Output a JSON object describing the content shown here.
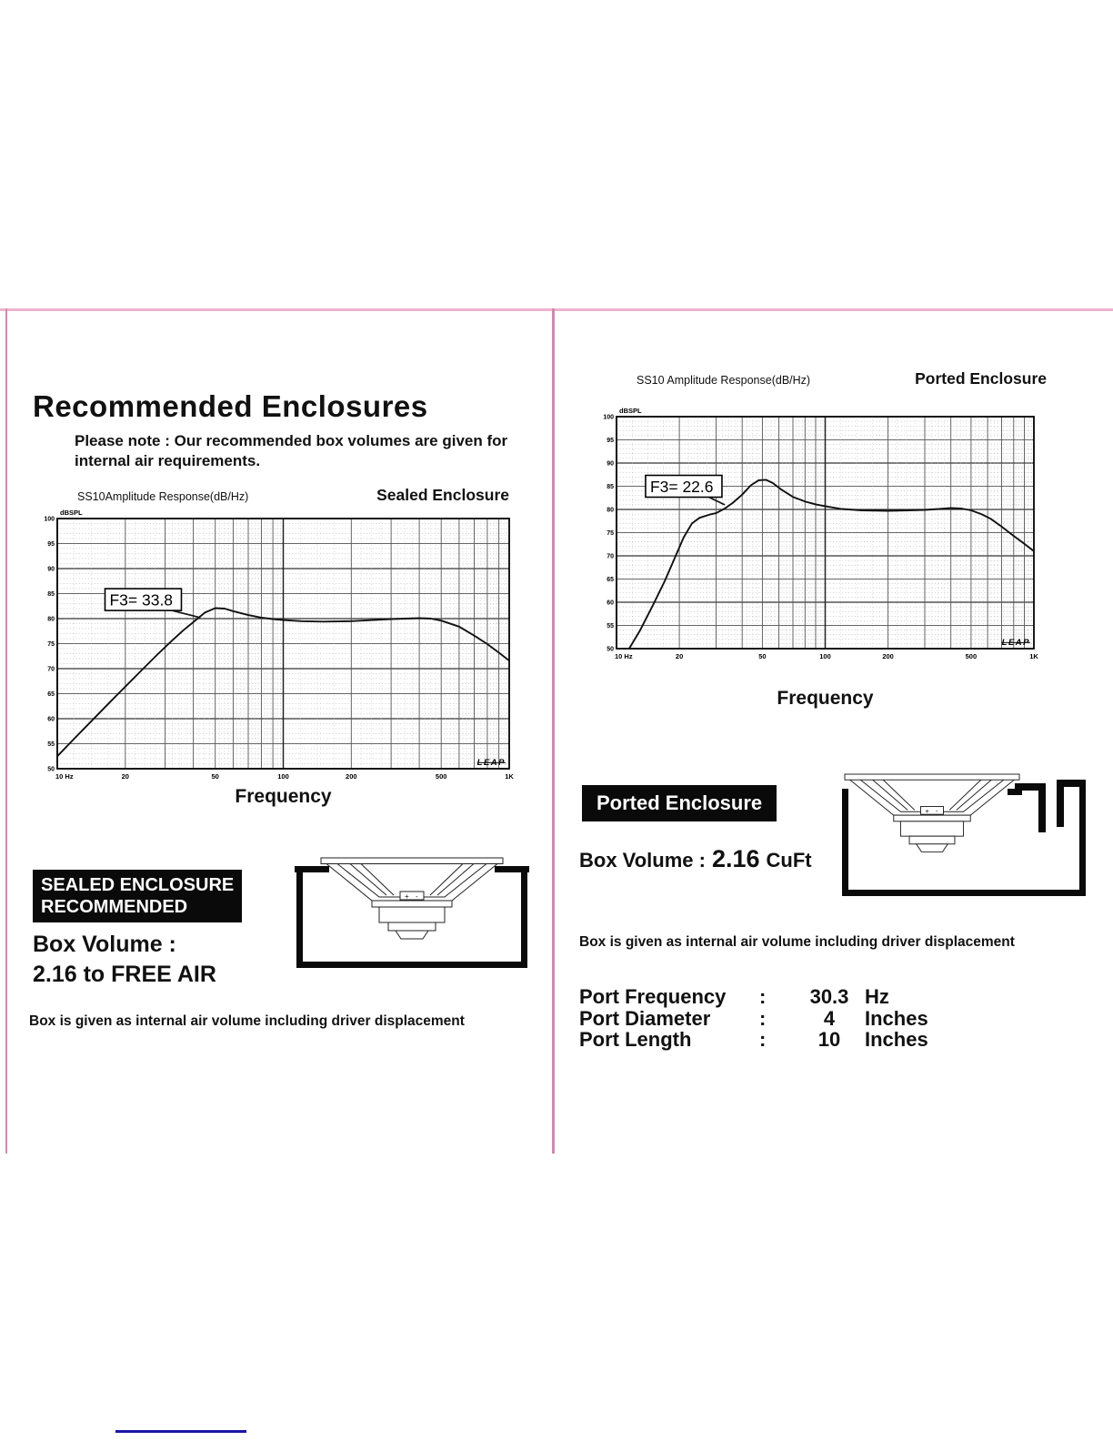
{
  "left": {
    "heading": "Recommended Enclosures",
    "note_line1": "Please note : Our recommended box volumes are given for",
    "note_line2": "internal air requirements.",
    "badge_line1": "SEALED ENCLOSURE",
    "badge_line2": "RECOMMENDED",
    "box_volume_label": "Box Volume :",
    "box_volume_value": "2.16 to FREE AIR",
    "footnote": "Box is given as internal air volume including driver displacement"
  },
  "right": {
    "badge": "Ported Enclosure",
    "box_volume_label": "Box Volume :",
    "box_volume_value": "2.16",
    "box_volume_unit": "CuFt",
    "footnote": "Box is given as internal air volume including driver displacement",
    "port_specs": {
      "rows": [
        {
          "label": "Port Frequency",
          "colon": ":",
          "value": "30.3",
          "unit": "Hz"
        },
        {
          "label": "Port Diameter",
          "colon": ":",
          "value": "4",
          "unit": "Inches"
        },
        {
          "label": "Port Length",
          "colon": ":",
          "value": "10",
          "unit": "Inches"
        }
      ]
    }
  },
  "drawings": {
    "terminal_plus": "+",
    "terminal_minus": "-"
  },
  "colors": {
    "border_pink": "#cd8ab0",
    "border_pink_top": "#edb3ce",
    "badge_bg": "#0a0a0a",
    "link_blue": "#1a16a8",
    "curve_black": "#111111"
  },
  "chart_data": [
    {
      "type": "line",
      "title": "SS10Amplitude Response(dB/Hz)",
      "corner_label": "Sealed Enclosure",
      "ylabel": "dBSPL",
      "xlabel": "Frequency",
      "logo": "LEAP",
      "xlim": [
        10,
        1000
      ],
      "ylim": [
        50,
        100
      ],
      "grid": "log-x, 5dB major / 1dB minor",
      "xticks": [
        {
          "v": 10,
          "label": "10 Hz"
        },
        {
          "v": 20,
          "label": "20"
        },
        {
          "v": 50,
          "label": "50"
        },
        {
          "v": 100,
          "label": "100"
        },
        {
          "v": 200,
          "label": "200"
        },
        {
          "v": 500,
          "label": "500"
        },
        {
          "v": 1000,
          "label": "1K"
        }
      ],
      "annotation": {
        "text": "F3= 33.8",
        "box_f": 24,
        "box_db": 83.8,
        "target_f": 43,
        "target_db": 80.2
      },
      "points": [
        [
          10,
          52.5
        ],
        [
          12,
          56.2
        ],
        [
          14,
          59.3
        ],
        [
          17,
          63.2
        ],
        [
          20,
          66.4
        ],
        [
          24,
          70
        ],
        [
          28,
          73
        ],
        [
          32,
          75.5
        ],
        [
          36,
          77.6
        ],
        [
          40,
          79.3
        ],
        [
          45,
          81.2
        ],
        [
          50,
          82.1
        ],
        [
          55,
          82
        ],
        [
          60,
          81.5
        ],
        [
          70,
          80.7
        ],
        [
          80,
          80.2
        ],
        [
          90,
          79.9
        ],
        [
          100,
          79.7
        ],
        [
          120,
          79.5
        ],
        [
          150,
          79.4
        ],
        [
          200,
          79.5
        ],
        [
          250,
          79.7
        ],
        [
          300,
          79.9
        ],
        [
          350,
          80
        ],
        [
          400,
          80.1
        ],
        [
          450,
          80
        ],
        [
          500,
          79.6
        ],
        [
          600,
          78.4
        ],
        [
          700,
          76.6
        ],
        [
          800,
          74.9
        ],
        [
          900,
          73.2
        ],
        [
          1000,
          71.6
        ]
      ]
    },
    {
      "type": "line",
      "title": "SS10 Amplitude Response(dB/Hz)",
      "corner_label": "Ported Enclosure",
      "ylabel": "dBSPL",
      "xlabel": "Frequency",
      "logo": "LEAP",
      "xlim": [
        10,
        1000
      ],
      "ylim": [
        50,
        100
      ],
      "grid": "log-x, 5dB major / 1dB minor",
      "xticks": [
        {
          "v": 10,
          "label": "10 Hz"
        },
        {
          "v": 20,
          "label": "20"
        },
        {
          "v": 50,
          "label": "50"
        },
        {
          "v": 100,
          "label": "100"
        },
        {
          "v": 200,
          "label": "200"
        },
        {
          "v": 500,
          "label": "500"
        },
        {
          "v": 1000,
          "label": "1K"
        }
      ],
      "annotation": {
        "text": "F3= 22.6",
        "box_f": 21,
        "box_db": 85,
        "target_f": 33,
        "target_db": 81
      },
      "points": [
        [
          11.5,
          50
        ],
        [
          13,
          54
        ],
        [
          15,
          59.5
        ],
        [
          17,
          64.5
        ],
        [
          19,
          69.5
        ],
        [
          21,
          74
        ],
        [
          23,
          77
        ],
        [
          25,
          78.2
        ],
        [
          28,
          78.9
        ],
        [
          30,
          79.2
        ],
        [
          33,
          80.2
        ],
        [
          36,
          81.4
        ],
        [
          40,
          83.2
        ],
        [
          44,
          85.2
        ],
        [
          48,
          86.3
        ],
        [
          52,
          86.4
        ],
        [
          56,
          85.7
        ],
        [
          62,
          84.2
        ],
        [
          70,
          82.7
        ],
        [
          80,
          81.7
        ],
        [
          90,
          81.1
        ],
        [
          100,
          80.7
        ],
        [
          120,
          80.1
        ],
        [
          150,
          79.8
        ],
        [
          200,
          79.7
        ],
        [
          250,
          79.8
        ],
        [
          300,
          79.9
        ],
        [
          350,
          80.1
        ],
        [
          400,
          80.3
        ],
        [
          450,
          80.2
        ],
        [
          500,
          79.8
        ],
        [
          560,
          79
        ],
        [
          620,
          78
        ],
        [
          700,
          76.3
        ],
        [
          800,
          74.3
        ],
        [
          900,
          72.6
        ],
        [
          1000,
          71
        ]
      ]
    }
  ]
}
